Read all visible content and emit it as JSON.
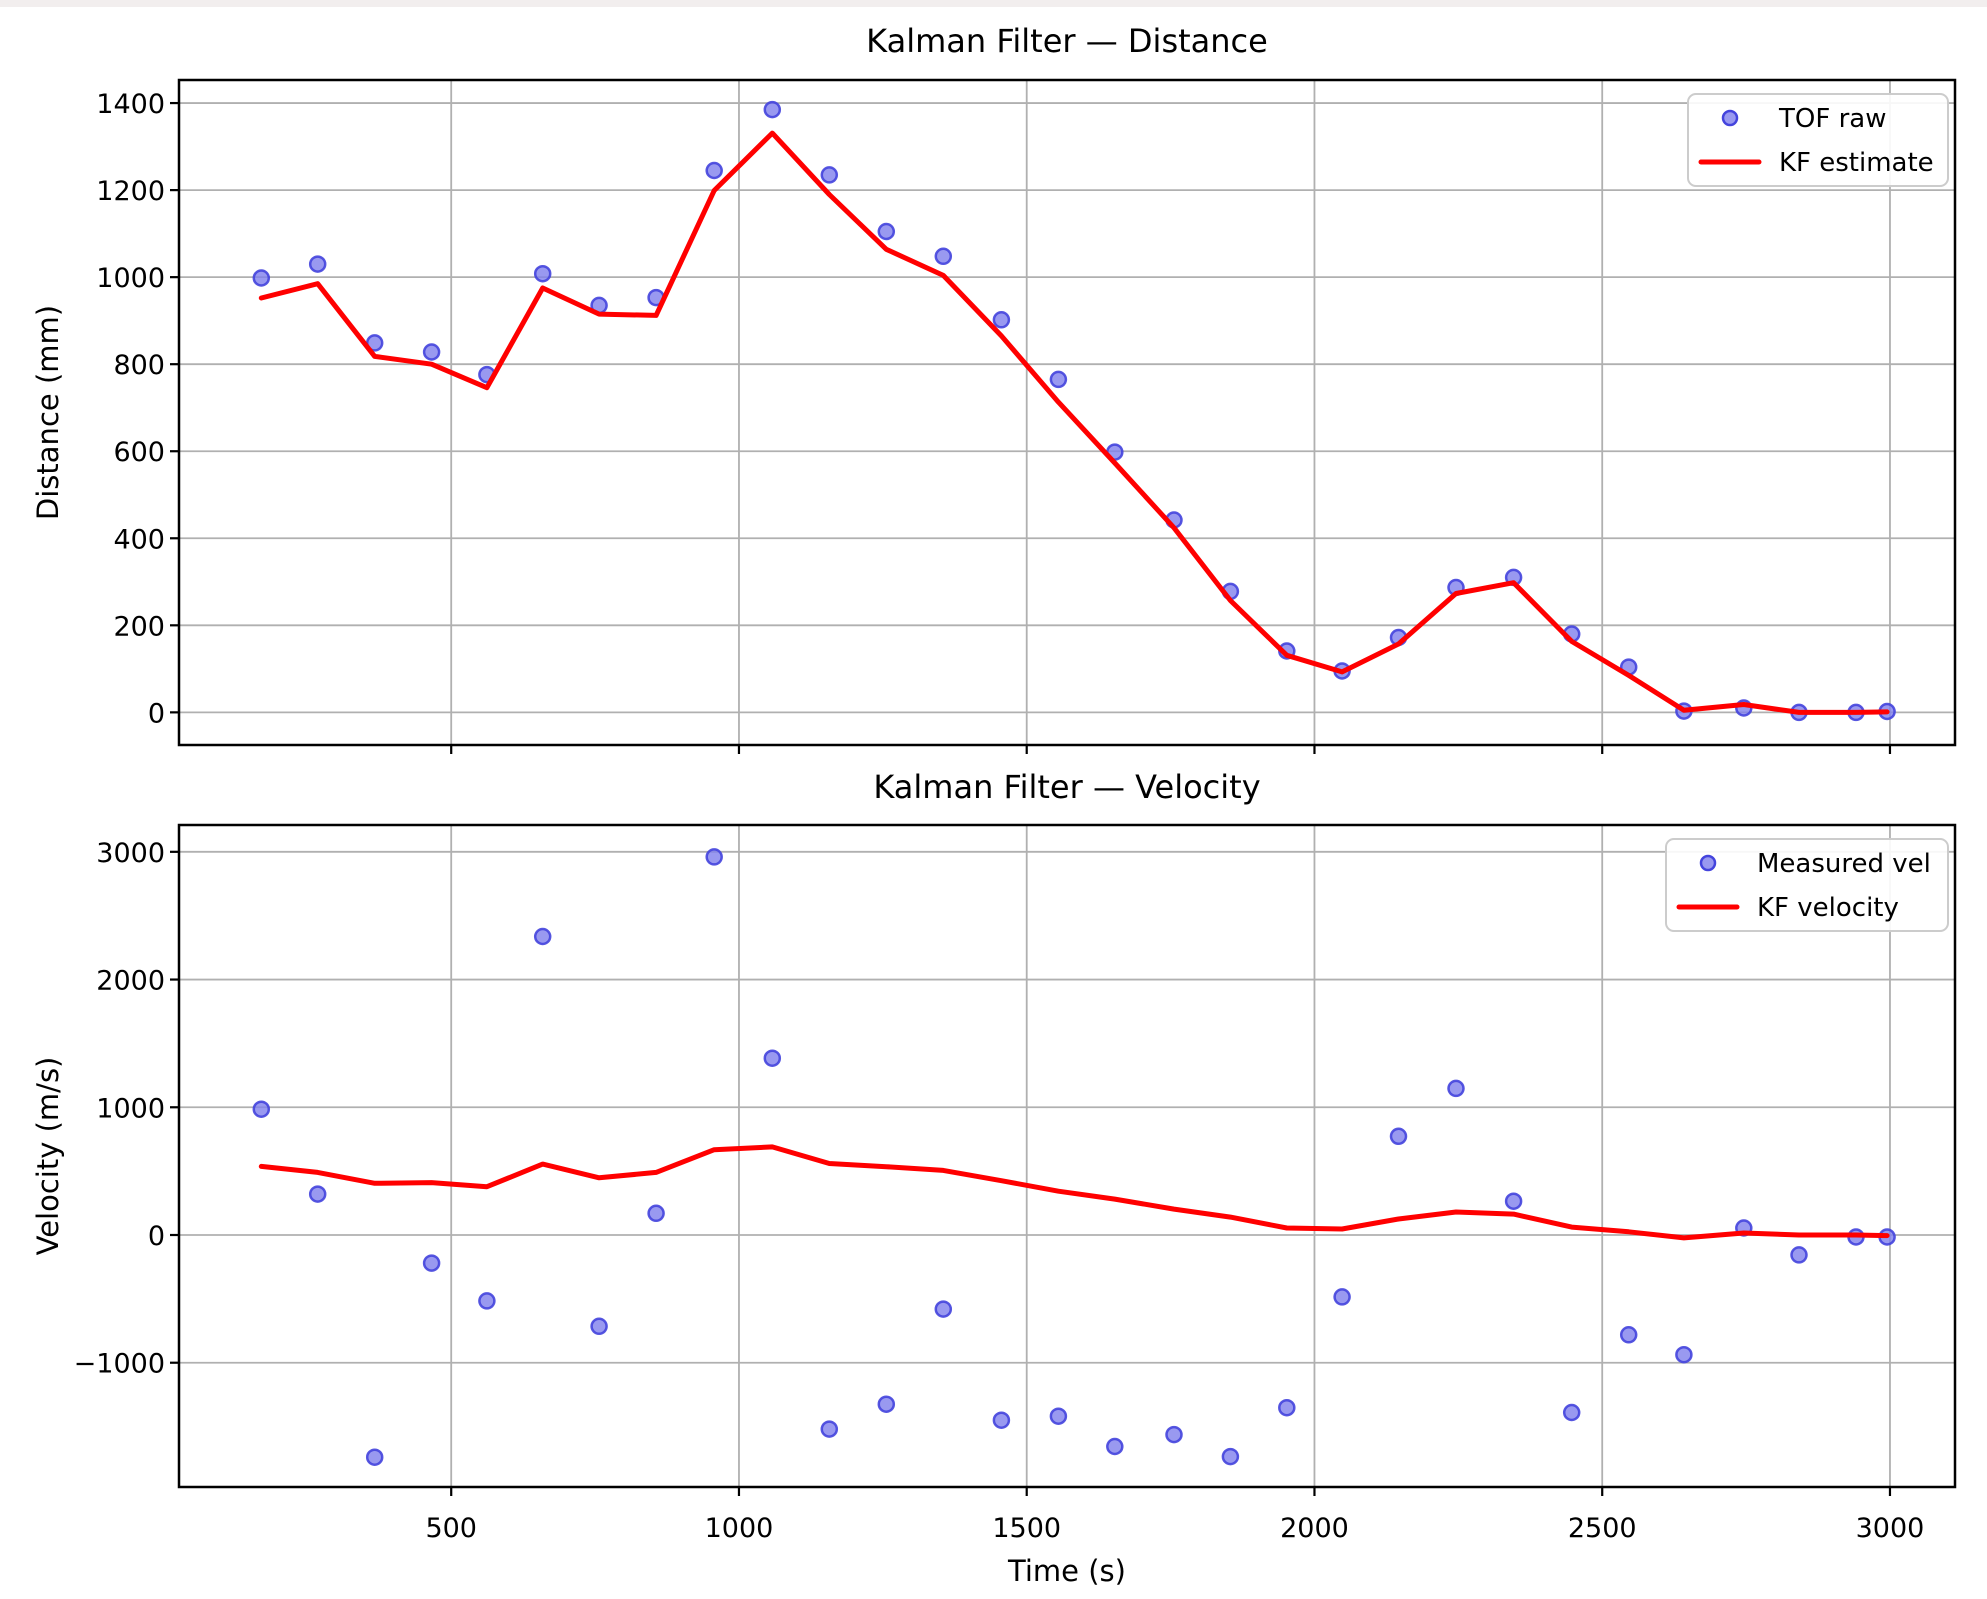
{
  "page": {
    "background": "#ffffff",
    "top_strip_color": "#f2eeee"
  },
  "style": {
    "grid_color": "#b0b0b0",
    "spine_color": "#000000",
    "raw_fill": "#8080ec",
    "raw_edge": "#4444dd",
    "kf_color": "#ff0000",
    "legend_border": "#cccccc",
    "legend_bg": "#ffffff"
  },
  "chart_data": [
    {
      "type": "scatter",
      "title": "Kalman Filter — Distance",
      "ylabel": "Distance (mm)",
      "xlabel": "",
      "grid": true,
      "legend_position": "upper right",
      "xlim": [
        27,
        3113
      ],
      "ylim": [
        -75,
        1453
      ],
      "xticks": [
        500,
        1000,
        1500,
        2000,
        2500,
        3000
      ],
      "xtick_labels_visible": false,
      "yticks": [
        0,
        200,
        400,
        600,
        800,
        1000,
        1200,
        1400
      ],
      "x": [
        170,
        268,
        367,
        466,
        562,
        659,
        757,
        856,
        957,
        1058,
        1157,
        1256,
        1355,
        1456,
        1555,
        1653,
        1756,
        1854,
        1952,
        2048,
        2146,
        2246,
        2346,
        2447,
        2546,
        2642,
        2746,
        2842,
        2941,
        2995
      ],
      "series": [
        {
          "name": "TOF raw",
          "style": "scatter",
          "values": [
            998,
            1030,
            849,
            828,
            776,
            1008,
            935,
            953,
            1245,
            1385,
            1235,
            1105,
            1048,
            902,
            765,
            598,
            442,
            278,
            141,
            95,
            172,
            287,
            310,
            180,
            104,
            3,
            10,
            0,
            0,
            2
          ]
        },
        {
          "name": "KF estimate",
          "style": "line",
          "values": [
            952,
            985,
            818,
            800,
            746,
            975,
            915,
            912,
            1199,
            1331,
            1190,
            1064,
            1004,
            865,
            713,
            573,
            424,
            257,
            131,
            93,
            157,
            273,
            298,
            163,
            85,
            5,
            18,
            0,
            0,
            1
          ]
        }
      ]
    },
    {
      "type": "scatter",
      "title": "Kalman Filter — Velocity",
      "ylabel": "Velocity (m/s)",
      "xlabel": "Time (s)",
      "grid": true,
      "legend_position": "upper right",
      "xlim": [
        27,
        3113
      ],
      "ylim": [
        -1973,
        3210
      ],
      "xticks": [
        500,
        1000,
        1500,
        2000,
        2500,
        3000
      ],
      "xtick_labels_visible": true,
      "yticks": [
        -1000,
        0,
        1000,
        2000,
        3000
      ],
      "x": [
        170,
        268,
        367,
        466,
        562,
        659,
        757,
        856,
        957,
        1058,
        1157,
        1256,
        1355,
        1456,
        1555,
        1653,
        1756,
        1854,
        1952,
        2048,
        2146,
        2246,
        2346,
        2447,
        2546,
        2642,
        2746,
        2842,
        2941,
        2995
      ],
      "series": [
        {
          "name": "Measured vel",
          "style": "scatter",
          "values": [
            985,
            320,
            -1740,
            -220,
            -516,
            2337,
            -715,
            170,
            2960,
            1384,
            -1520,
            -1325,
            -580,
            -1450,
            -1419,
            -1656,
            -1563,
            -1735,
            -1352,
            -485,
            773,
            1148,
            265,
            -1390,
            -781,
            -937,
            55,
            -156,
            -16,
            -16
          ]
        },
        {
          "name": "KF velocity",
          "style": "line",
          "values": [
            537,
            490,
            405,
            410,
            378,
            555,
            448,
            490,
            668,
            690,
            560,
            535,
            506,
            425,
            343,
            281,
            203,
            140,
            55,
            47,
            125,
            180,
            164,
            62,
            25,
            -23,
            16,
            0,
            0,
            -5
          ]
        }
      ]
    }
  ]
}
